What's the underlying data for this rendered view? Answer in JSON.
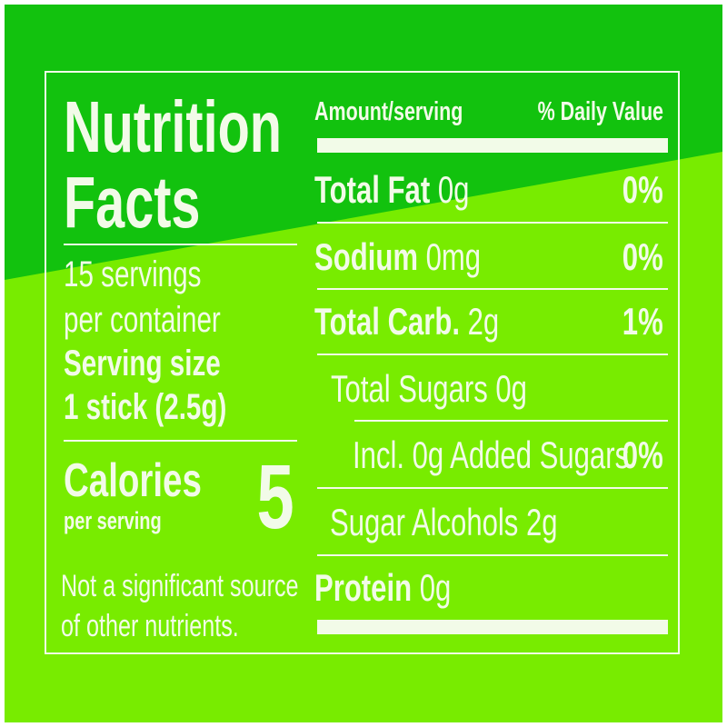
{
  "colors": {
    "dark_green": "#12c20e",
    "light_green": "#78ec00",
    "text": "#f2fbe8"
  },
  "title_line1": "Nutrition",
  "title_line2": "Facts",
  "servings_line1": "15 servings",
  "servings_line2": "per container",
  "serving_size_label": "Serving size",
  "serving_size_value": "1 stick (2.5g)",
  "calories_label": "Calories",
  "calories_sub": "per serving",
  "calories_value": "5",
  "footnote_line1": "Not a significant source",
  "footnote_line2": "of other nutrients.",
  "header": {
    "amount": "Amount/serving",
    "dv": "% Daily Value"
  },
  "rows": [
    {
      "name": "Total Fat",
      "amount": "0g",
      "dv": "0%"
    },
    {
      "name": "Sodium",
      "amount": "0mg",
      "dv": "0%"
    },
    {
      "name": "Total Carb.",
      "amount": "2g",
      "dv": "1%"
    },
    {
      "text": "Total Sugars 0g"
    },
    {
      "text": "Incl. 0g Added Sugars",
      "dv": "0%"
    },
    {
      "text": "Sugar Alcohols 2g"
    },
    {
      "name": "Protein",
      "amount": "0g"
    }
  ]
}
